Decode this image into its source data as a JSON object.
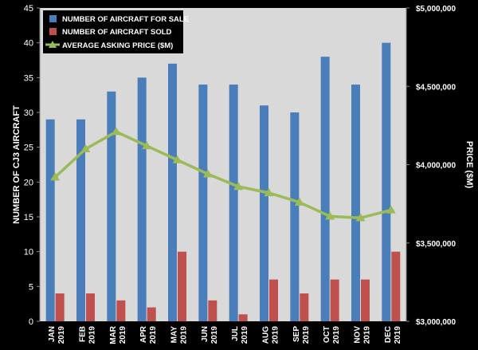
{
  "chart_data": {
    "type": "bar",
    "categories": [
      "JAN 2019",
      "FEB 2019",
      "MAR 2019",
      "APR 2019",
      "MAY 2019",
      "JUN 2019",
      "JUL 2019",
      "AUG 2019",
      "SEP 2019",
      "OCT 2019",
      "NOV 2019",
      "DEC 2019"
    ],
    "category_lines": [
      [
        "JAN",
        "2019"
      ],
      [
        "FEB",
        "2019"
      ],
      [
        "MAR",
        "2019"
      ],
      [
        "APR",
        "2019"
      ],
      [
        "MAY",
        "2019"
      ],
      [
        "JUN",
        "2019"
      ],
      [
        "JUL",
        "2019"
      ],
      [
        "AUG",
        "2019"
      ],
      [
        "SEP",
        "2019"
      ],
      [
        "OCT",
        "2019"
      ],
      [
        "NOV",
        "2019"
      ],
      [
        "DEC",
        "2019"
      ]
    ],
    "series": [
      {
        "name": "NUMBER OF AIRCRAFT FOR SALE",
        "type": "bar",
        "axis": "left",
        "color": "#4a7ebb",
        "values": [
          29,
          29,
          33,
          35,
          37,
          34,
          34,
          31,
          30,
          38,
          34,
          40
        ]
      },
      {
        "name": "NUMBER OF AIRCRAFT SOLD",
        "type": "bar",
        "axis": "left",
        "color": "#c0504d",
        "values": [
          4,
          4,
          3,
          2,
          10,
          3,
          1,
          6,
          4,
          6,
          6,
          10
        ]
      },
      {
        "name": "AVERAGE ASKING PRICE ($M)",
        "type": "line",
        "axis": "right",
        "color": "#9bbb59",
        "values": [
          3920000,
          4100000,
          4210000,
          4120000,
          4030000,
          3940000,
          3860000,
          3820000,
          3760000,
          3670000,
          3660000,
          3710000
        ]
      }
    ],
    "ylabel": "NUMBER OF CJ3 AIRCRAFT",
    "y2label": "PRICE ($M)",
    "ylim": [
      0,
      45
    ],
    "yticks": [
      0,
      5,
      10,
      15,
      20,
      25,
      30,
      35,
      40,
      45
    ],
    "y2lim": [
      3000000,
      5000000
    ],
    "y2ticks": [
      3000000,
      3500000,
      4000000,
      4500000,
      5000000
    ],
    "y2tick_labels": [
      "$3,000,000",
      "$3,500,000",
      "$4,000,000",
      "$4,500,000",
      "$5,000,000"
    ],
    "legend_position": "top-left",
    "grid": false,
    "plot_background": "#d9d9d9",
    "background": "#000000",
    "text_color": "#ffffff"
  }
}
